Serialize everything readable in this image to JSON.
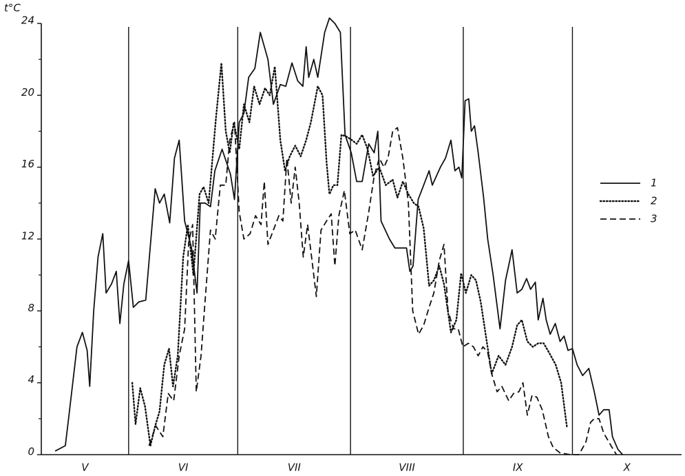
{
  "chart_data": {
    "type": "line",
    "y_label": "t°C",
    "ylim": [
      0,
      24
    ],
    "yticks": [
      0,
      4,
      8,
      12,
      16,
      20,
      24
    ],
    "xlim": [
      7,
      183
    ],
    "months": {
      "labels": [
        "V",
        "VI",
        "VII",
        "VIII",
        "IX",
        "X"
      ],
      "bounds": [
        7,
        31,
        61,
        92,
        123,
        153,
        183
      ]
    },
    "legend": "right",
    "series": [
      {
        "name": "1",
        "color": "#111111",
        "dash": "solid",
        "x": [
          10.8,
          13.6,
          14.5,
          16.8,
          18.3,
          19.6,
          20.3,
          21.4,
          22.6,
          23.9,
          24.8,
          26.3,
          27.6,
          28.6,
          29.7,
          31,
          32.3,
          33.8,
          35.7,
          38.3,
          39.5,
          40.8,
          42.3,
          43.6,
          44.9,
          46.4,
          48.3,
          49.8,
          50.7,
          52,
          53.5,
          54.7,
          56.7,
          59,
          60.1,
          61.4,
          62.7,
          64,
          65.7,
          67.2,
          69.3,
          70.8,
          72.7,
          74.2,
          75.9,
          77.5,
          78.9,
          79.8,
          80.5,
          81.9,
          83,
          84.9,
          86.2,
          87.7,
          89.2,
          90.5,
          92.2,
          93.7,
          95.2,
          97,
          98.5,
          99.5,
          100.4,
          102.7,
          104.2,
          107.4,
          108.3,
          109.2,
          110.6,
          112.1,
          113.6,
          114.5,
          116.7,
          118.1,
          119.6,
          120.7,
          121.8,
          122.6,
          123.5,
          124.5,
          125.2,
          126.1,
          127.1,
          128.6,
          129.7,
          131.2,
          133.1,
          134.6,
          136.4,
          137.8,
          139.1,
          140.4,
          141.5,
          142.8,
          143.6,
          144.9,
          145.8,
          146.9,
          148.3,
          149.6,
          150.7,
          151.8,
          153,
          154.3,
          155.8,
          157.5,
          159,
          160.3,
          161.6,
          163.1,
          164,
          165.5,
          166.8
        ],
        "values": [
          0.2,
          0.5,
          2,
          6,
          6.8,
          5.8,
          3.8,
          8,
          11,
          12.3,
          9,
          9.5,
          10.2,
          7.3,
          9.5,
          10.8,
          8.2,
          8.5,
          8.6,
          14.8,
          14,
          14.5,
          12.9,
          16.5,
          17.5,
          13,
          11.5,
          9,
          14,
          14,
          13.8,
          15.8,
          17,
          15.6,
          14.2,
          18.5,
          19,
          21,
          21.5,
          23.5,
          22,
          19.5,
          20.6,
          20.5,
          21.8,
          20.8,
          20.5,
          22.7,
          21,
          22,
          21,
          23.5,
          24.3,
          24,
          23.5,
          17.8,
          16.8,
          15.2,
          15.2,
          17.3,
          16.8,
          18,
          13,
          12,
          11.5,
          11.5,
          10.2,
          10.5,
          14.2,
          15,
          15.8,
          15,
          16,
          16.5,
          17.5,
          15.8,
          16,
          15.4,
          19.7,
          19.8,
          18,
          18.3,
          16.8,
          14.3,
          12,
          10,
          7,
          9.7,
          11.4,
          9,
          9.2,
          9.8,
          9.2,
          9.6,
          7.5,
          8.7,
          7.5,
          6.7,
          7.3,
          6.3,
          6.6,
          5.8,
          5.9,
          5,
          4.4,
          4.8,
          3.5,
          2.2,
          2.5,
          2.5,
          1,
          0.3,
          0
        ]
      },
      {
        "name": "2",
        "color": "#111111",
        "dash": "dotted",
        "x": [
          32,
          32.9,
          34.2,
          35.5,
          37,
          38.3,
          39.5,
          40.8,
          42.1,
          43.2,
          44.5,
          46,
          47.3,
          48.8,
          50.5,
          51.6,
          53,
          55,
          56.5,
          57.7,
          58.8,
          59.9,
          61.4,
          62.7,
          64.2,
          65.5,
          67,
          68.5,
          69.8,
          71.2,
          72.7,
          74,
          75.3,
          76.8,
          78.3,
          79.8,
          81.1,
          83,
          84.3,
          85.4,
          86.2,
          87.3,
          88.4,
          89.5,
          90.9,
          92.4,
          93.7,
          95.2,
          96.7,
          98.2,
          99.9,
          101.7,
          103.6,
          104.9,
          106.4,
          107.9,
          109.4,
          110.7,
          112.1,
          113.6,
          114.9,
          116.4,
          117.7,
          119.6,
          121.1,
          122.4,
          123.7,
          125.2,
          126.5,
          127.8,
          129.3,
          130.8,
          132.7,
          134.6,
          136.4,
          137.8,
          139.1,
          140.6,
          142.1,
          143.6,
          145.1,
          146.8,
          148.4,
          149.9,
          151.5
        ],
        "values": [
          4,
          1.7,
          3.7,
          2.7,
          0.5,
          1.6,
          2.4,
          5,
          5.9,
          3.8,
          5.5,
          11,
          12.8,
          10,
          14.5,
          14.9,
          14,
          18.7,
          21.8,
          18,
          16.8,
          18.5,
          17,
          19.5,
          18.5,
          20.5,
          19.5,
          20.4,
          20,
          21.6,
          17.5,
          15.8,
          16.6,
          17.2,
          16.6,
          17.5,
          18.5,
          20.5,
          20,
          16.3,
          14.5,
          15,
          15,
          17.8,
          17.7,
          17.5,
          17.3,
          17.8,
          17,
          15.5,
          16,
          15,
          15.3,
          14.3,
          15.2,
          14.5,
          14,
          13.8,
          12.6,
          9.4,
          9.7,
          10.5,
          9.5,
          6.8,
          7.5,
          10.1,
          9,
          10,
          9.7,
          8.5,
          6.5,
          4.5,
          5.5,
          5,
          6,
          7.2,
          7.5,
          6.3,
          6,
          6.2,
          6.2,
          5.6,
          5,
          4,
          1.5
        ]
      },
      {
        "name": "3",
        "color": "#111111",
        "dash": "dashed",
        "x": [
          36.6,
          38.5,
          40.4,
          41.9,
          43.4,
          44.9,
          46.4,
          47.5,
          48.6,
          49.6,
          50.9,
          52,
          53.5,
          54.8,
          56.2,
          57.7,
          58.8,
          60.1,
          61.4,
          62.7,
          64.4,
          65.9,
          67.4,
          68.3,
          69.3,
          70.8,
          72.3,
          73.4,
          74.5,
          75.7,
          76.8,
          77.9,
          79,
          80.2,
          81.3,
          82.6,
          83.9,
          85.4,
          86.7,
          87.7,
          88.8,
          90.3,
          91.8,
          93.3,
          95.2,
          97,
          98.5,
          99.9,
          101.2,
          102.3,
          103.6,
          104.9,
          106.4,
          107.9,
          109.1,
          110.7,
          112.1,
          113.6,
          114.9,
          116.4,
          117.7,
          118.8,
          120.3,
          121.6,
          122.9,
          124.4,
          125.8,
          127.1,
          128.4,
          129.7,
          130.8,
          132.3,
          133.6,
          135.5,
          136.8,
          138.3,
          139.4,
          140.6,
          141.9,
          143.2,
          144.7,
          146.4,
          147.7,
          149.6,
          152.4,
          154.8,
          156.7,
          158,
          159,
          160.3,
          161.6,
          163.6,
          165.1
        ],
        "values": [
          0.5,
          1.6,
          1,
          3.4,
          3,
          5.5,
          7,
          11.8,
          12.8,
          3.5,
          5.5,
          8.5,
          12.5,
          12,
          15,
          15,
          17.5,
          18.5,
          13.5,
          12,
          12.3,
          13.3,
          12.8,
          15.2,
          11.7,
          12.5,
          13.3,
          13,
          16.5,
          14,
          16,
          14,
          11,
          12.8,
          11,
          8.8,
          12.5,
          13,
          13.4,
          10.5,
          13.3,
          14.7,
          12.3,
          12.5,
          11.4,
          13.5,
          15.5,
          16.5,
          16,
          16.5,
          18,
          18.2,
          16.5,
          14,
          8,
          6.7,
          7.2,
          8.2,
          9,
          10.8,
          11.7,
          8,
          7,
          7,
          6,
          6.2,
          6,
          5.5,
          6,
          5.7,
          4.5,
          3.5,
          3.8,
          3,
          3.4,
          3.5,
          4,
          2.2,
          3.3,
          3.2,
          2.5,
          1,
          0.4,
          0.1,
          0,
          0,
          0.7,
          1.8,
          2,
          2,
          1.2,
          0.5,
          0
        ]
      }
    ]
  }
}
